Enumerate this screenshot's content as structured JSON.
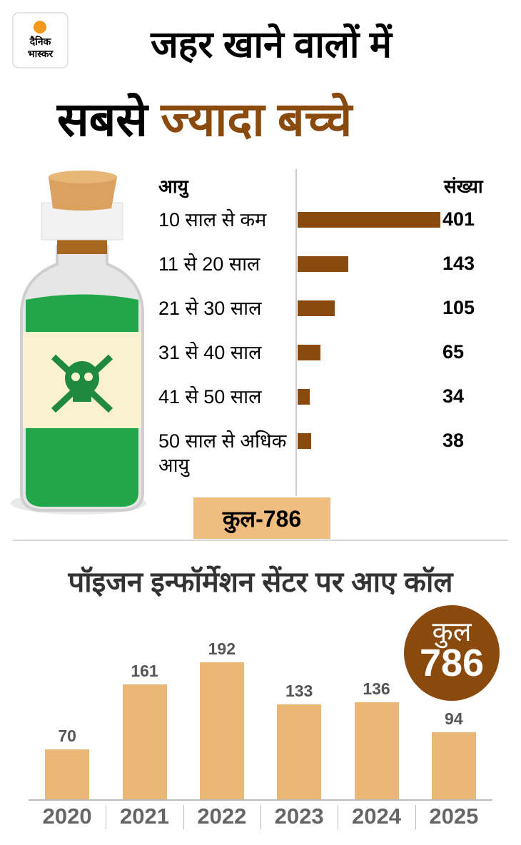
{
  "logo": {
    "line1": "दैनिक",
    "line2": "भास्कर"
  },
  "header": {
    "title_line1": "जहर खाने वालों में",
    "title_black": "सबसे",
    "title_highlight": "ज्यादा बच्चे"
  },
  "chart_data": [
    {
      "type": "bar",
      "orientation": "horizontal",
      "category_header": "आयु",
      "value_header": "संख्या",
      "categories": [
        "10 साल से कम",
        "11 से 20 साल",
        "21 से 30 साल",
        "31 से 40 साल",
        "41 से 50 साल",
        "50 साल से अधिक आयु"
      ],
      "values": [
        401,
        143,
        105,
        65,
        34,
        38
      ],
      "color": "#8b4a0d",
      "total_label": "कुल-786"
    },
    {
      "type": "bar",
      "title": "पॉइजन इन्फॉर्मेशन सेंटर पर आए कॉल",
      "categories": [
        "2020",
        "2021",
        "2022",
        "2023",
        "2024",
        "2025"
      ],
      "values": [
        70,
        161,
        192,
        133,
        136,
        94
      ],
      "color": "#ebb777",
      "total_label": "कुल",
      "total": 786
    }
  ]
}
